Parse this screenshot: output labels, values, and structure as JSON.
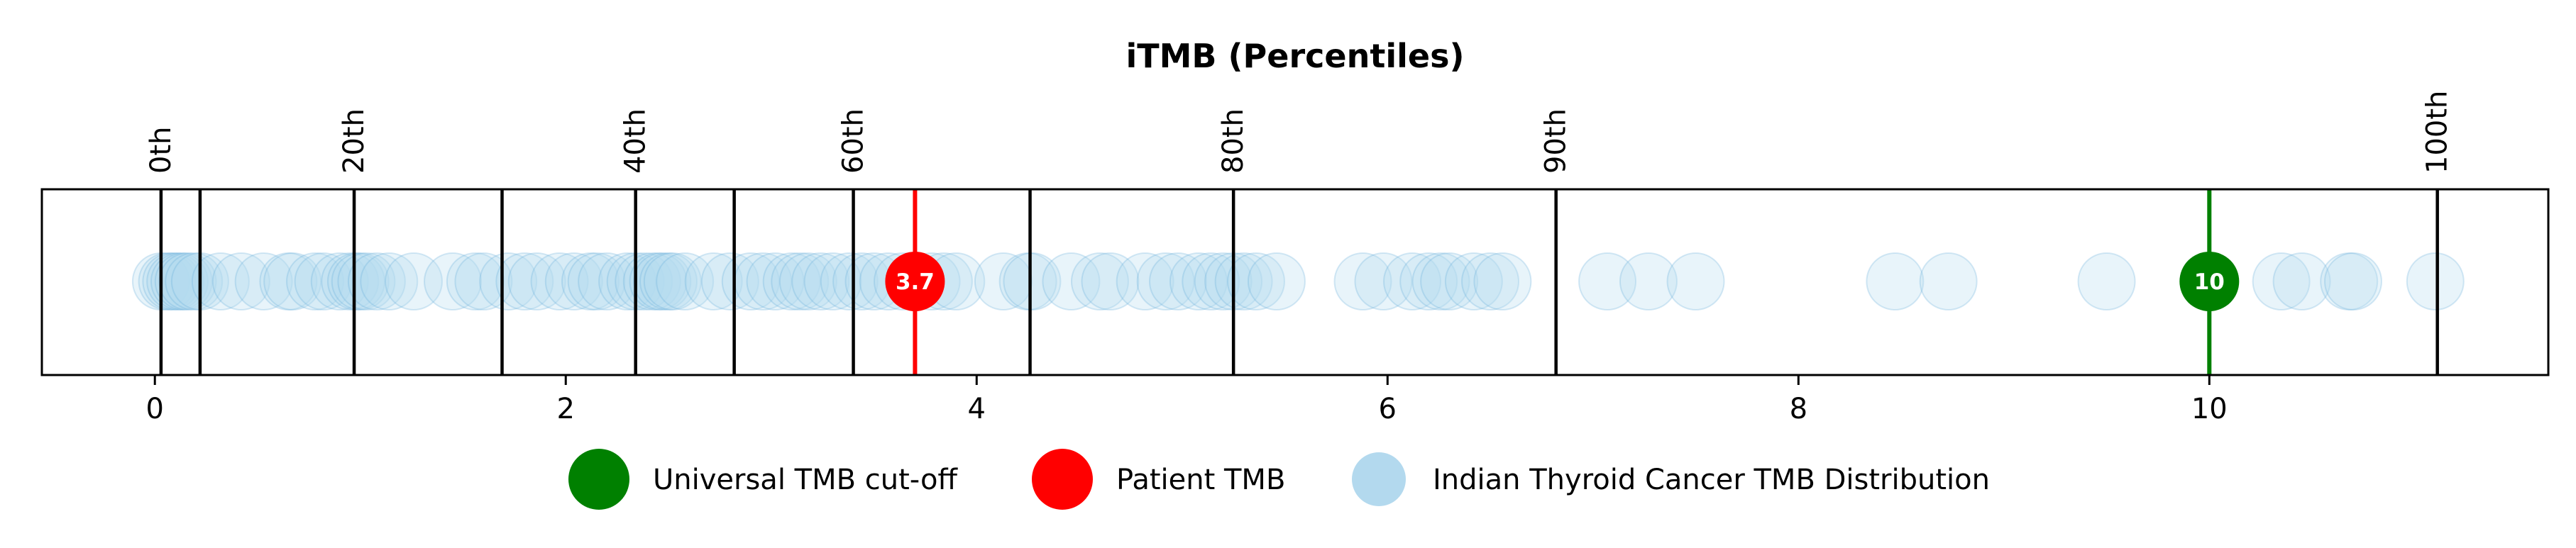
{
  "chart_data": {
    "type": "scatter",
    "title": "iTMB (Percentiles)",
    "xlim": [
      -0.55,
      11.65
    ],
    "xticks": [
      0,
      2,
      4,
      6,
      8,
      10
    ],
    "percentile_lines": [
      {
        "x": 0.03,
        "label": "0th"
      },
      {
        "x": 0.22,
        "label": ""
      },
      {
        "x": 0.97,
        "label": "20th"
      },
      {
        "x": 1.69,
        "label": ""
      },
      {
        "x": 2.34,
        "label": "40th"
      },
      {
        "x": 2.82,
        "label": ""
      },
      {
        "x": 3.4,
        "label": "60th"
      },
      {
        "x": 4.26,
        "label": ""
      },
      {
        "x": 5.25,
        "label": "80th"
      },
      {
        "x": 6.82,
        "label": "90th"
      },
      {
        "x": 11.11,
        "label": "100th"
      }
    ],
    "series": [
      {
        "name": "Indian Thyroid Cancer TMB Distribution",
        "color": "#b3d9ee",
        "x": [
          0.03,
          0.06,
          0.08,
          0.1,
          0.12,
          0.14,
          0.16,
          0.19,
          0.22,
          0.32,
          0.42,
          0.53,
          0.65,
          0.67,
          0.78,
          0.82,
          0.9,
          0.95,
          0.98,
          1.0,
          1.03,
          1.08,
          1.14,
          1.26,
          1.45,
          1.56,
          1.6,
          1.72,
          1.8,
          1.86,
          1.97,
          2.04,
          2.12,
          2.15,
          2.2,
          2.3,
          2.34,
          2.38,
          2.42,
          2.45,
          2.47,
          2.5,
          2.52,
          2.58,
          2.72,
          2.8,
          2.9,
          2.96,
          3.02,
          3.1,
          3.14,
          3.18,
          3.24,
          3.3,
          3.38,
          3.44,
          3.5,
          3.57,
          3.64,
          3.78,
          3.84,
          3.9,
          4.13,
          4.25,
          4.27,
          4.46,
          4.6,
          4.65,
          4.82,
          4.92,
          4.98,
          5.08,
          5.14,
          5.2,
          5.25,
          5.3,
          5.36,
          5.46,
          5.88,
          5.98,
          6.12,
          6.2,
          6.26,
          6.3,
          6.42,
          6.5,
          6.56,
          7.07,
          7.27,
          7.5,
          8.47,
          8.73,
          9.5,
          10.35,
          10.45,
          10.68,
          10.7,
          11.1
        ]
      },
      {
        "name": "Patient TMB",
        "color": "#ff0000",
        "x": [
          3.7
        ],
        "label": "3.7"
      },
      {
        "name": "Universal TMB cut-off",
        "color": "#008000",
        "x": [
          10
        ],
        "label": "10"
      }
    ],
    "legend": {
      "position": "bottom-center",
      "entries": [
        {
          "name": "Universal TMB cut-off",
          "color": "#008000"
        },
        {
          "name": "Patient TMB",
          "color": "#ff0000"
        },
        {
          "name": "Indian Thyroid Cancer TMB Distribution",
          "color": "#b3d9ee"
        }
      ]
    },
    "grid": false
  }
}
